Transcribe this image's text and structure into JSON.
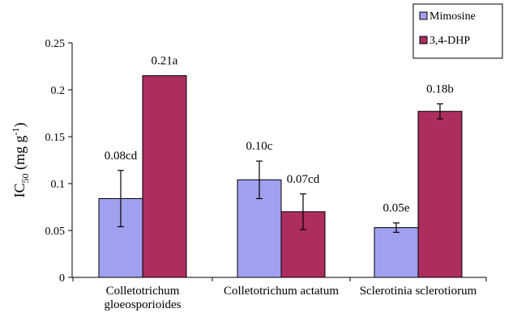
{
  "chart_data": {
    "type": "bar",
    "ylabel": "IC50 (mg g-1)",
    "ylim": [
      0,
      0.25
    ],
    "yticks": [
      "0",
      "0.05",
      "0.1",
      "0.15",
      "0.2",
      "0.25"
    ],
    "ytick_values": [
      0,
      0.05,
      0.1,
      0.15,
      0.2,
      0.25
    ],
    "categories": [
      [
        "Colletotrichum",
        "gloeosporioides"
      ],
      [
        "Colletotrichum actatum"
      ],
      [
        "Sclerotinia sclerotiorum"
      ]
    ],
    "series": [
      {
        "name": "Mimosine",
        "color": "#a0a0f0",
        "values": [
          0.084,
          0.104,
          0.053
        ],
        "errors": [
          0.03,
          0.02,
          0.005
        ],
        "labels": [
          "0.08cd",
          "0.10c",
          "0.05e"
        ]
      },
      {
        "name": "3,4-DHP",
        "color": "#ad2d5f",
        "values": [
          0.215,
          0.07,
          0.177
        ],
        "errors": [
          0.0,
          0.019,
          0.008
        ],
        "labels": [
          "0.21a",
          "0.07cd",
          "0.18b"
        ]
      }
    ],
    "legend": "top-right",
    "grid": false
  }
}
